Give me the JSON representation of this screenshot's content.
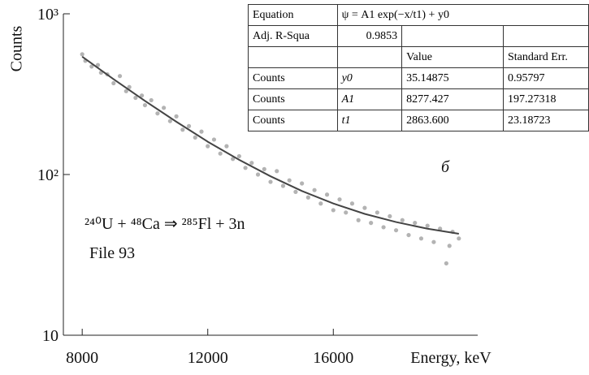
{
  "chart_data": {
    "type": "scatter",
    "xlabel": "Energy, keV",
    "ylabel": "Counts",
    "xlim": [
      7400,
      20600
    ],
    "xticks": [
      8000,
      12000,
      16000
    ],
    "ylim": [
      10,
      1000
    ],
    "yscale": "log",
    "yticks": [
      10,
      {
        "value": 100,
        "label": "10²"
      },
      {
        "value": 1000,
        "label": "10³"
      }
    ],
    "annotations": [
      "б",
      "²⁴⁰U + ⁴⁸Ca ⇒ ²⁸⁵Fl + 3n",
      "File 93"
    ],
    "series": [
      {
        "type": "scatter",
        "color": "#9a9a9a",
        "x": [
          8000,
          8100,
          8300,
          8500,
          8600,
          8800,
          9000,
          9200,
          9400,
          9500,
          9700,
          9900,
          10000,
          10200,
          10400,
          10600,
          10800,
          11000,
          11200,
          11400,
          11600,
          11800,
          12000,
          12200,
          12400,
          12600,
          12800,
          13000,
          13200,
          13400,
          13600,
          13800,
          14000,
          14200,
          14400,
          14600,
          14800,
          15000,
          15200,
          15400,
          15600,
          15800,
          16000,
          16200,
          16400,
          16600,
          16800,
          17000,
          17200,
          17400,
          17600,
          17800,
          18000,
          18200,
          18400,
          18600,
          18800,
          19000,
          19200,
          19400,
          19600,
          19700,
          19800,
          20000
        ],
        "values": [
          560,
          510,
          470,
          480,
          430,
          420,
          370,
          410,
          330,
          350,
          300,
          310,
          270,
          290,
          240,
          260,
          215,
          230,
          190,
          200,
          170,
          185,
          150,
          165,
          135,
          150,
          125,
          130,
          110,
          118,
          100,
          108,
          90,
          105,
          85,
          92,
          78,
          88,
          72,
          80,
          66,
          75,
          60,
          70,
          58,
          66,
          52,
          62,
          50,
          58,
          47,
          55,
          45,
          52,
          42,
          50,
          40,
          48,
          38,
          46,
          28,
          36,
          44,
          40
        ]
      },
      {
        "type": "line",
        "color": "#444444",
        "x": [
          8000,
          9000,
          10000,
          11000,
          12000,
          13000,
          14000,
          15000,
          16000,
          17000,
          18000,
          19000,
          20000
        ],
        "values": [
          541,
          392,
          287,
          213,
          160,
          123.5,
          97.5,
          79,
          66,
          56.9,
          50.6,
          46,
          42.8
        ]
      }
    ]
  },
  "table": {
    "rows": [
      [
        "Equation",
        "ψ = A1 exp(−x/t1) + y0",
        null,
        null
      ],
      [
        "Adj. R-Squa",
        "0.9853",
        null,
        null
      ],
      [
        null,
        null,
        "Value",
        "Standard Err."
      ],
      [
        "Counts",
        "y0",
        "35.14875",
        "0.95797"
      ],
      [
        "Counts",
        "A1",
        "8277.427",
        "197.27318"
      ],
      [
        "Counts",
        "t1",
        "2863.600",
        "23.18723"
      ]
    ]
  }
}
